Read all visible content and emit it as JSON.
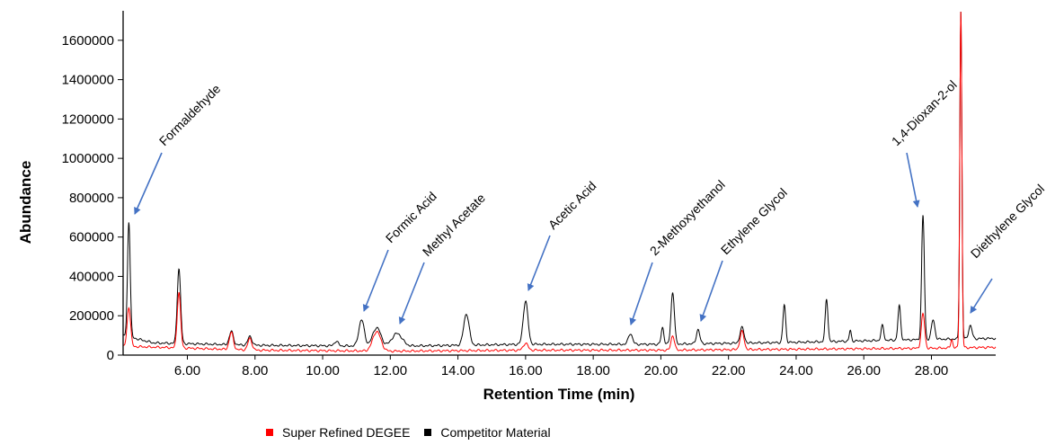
{
  "chart_data": {
    "type": "line",
    "title": "",
    "xlabel": "Retention Time (min)",
    "ylabel": "Abundance",
    "xlim": [
      4.1,
      29.9
    ],
    "ylim": [
      0,
      1750000
    ],
    "x_ticks": [
      6,
      8,
      10,
      12,
      14,
      16,
      18,
      20,
      22,
      24,
      26,
      28
    ],
    "x_tick_labels": [
      "6.00",
      "8.00",
      "10.00",
      "12.00",
      "14.00",
      "16.00",
      "18.00",
      "20.00",
      "22.00",
      "24.00",
      "26.00",
      "28.00"
    ],
    "y_ticks": [
      0,
      200000,
      400000,
      600000,
      800000,
      1000000,
      1200000,
      1400000,
      1600000
    ],
    "y_tick_labels": [
      "0",
      "200000",
      "400000",
      "600000",
      "800000",
      "1000000",
      "1200000",
      "1400000",
      "1600000"
    ],
    "legend_position": "bottom",
    "series": [
      {
        "name": "Competitor Material",
        "color": "#000000",
        "baseline": [
          [
            4.1,
            100000
          ],
          [
            5.0,
            62000
          ],
          [
            8.0,
            50000
          ],
          [
            12.0,
            45000
          ],
          [
            16.0,
            55000
          ],
          [
            20.0,
            55000
          ],
          [
            24.0,
            65000
          ],
          [
            28.0,
            80000
          ],
          [
            29.9,
            85000
          ]
        ],
        "peaks": [
          {
            "x": 4.27,
            "y": 680000,
            "w": 0.04
          },
          {
            "x": 5.75,
            "y": 440000,
            "w": 0.05
          },
          {
            "x": 7.3,
            "y": 120000,
            "w": 0.06
          },
          {
            "x": 7.85,
            "y": 95000,
            "w": 0.06
          },
          {
            "x": 10.4,
            "y": 70000,
            "w": 0.06
          },
          {
            "x": 11.15,
            "y": 180000,
            "w": 0.08
          },
          {
            "x": 11.6,
            "y": 140000,
            "w": 0.12
          },
          {
            "x": 12.2,
            "y": 110000,
            "w": 0.15
          },
          {
            "x": 14.25,
            "y": 210000,
            "w": 0.08
          },
          {
            "x": 16.0,
            "y": 275000,
            "w": 0.07
          },
          {
            "x": 19.1,
            "y": 110000,
            "w": 0.06
          },
          {
            "x": 20.05,
            "y": 140000,
            "w": 0.04
          },
          {
            "x": 20.35,
            "y": 320000,
            "w": 0.05
          },
          {
            "x": 21.1,
            "y": 130000,
            "w": 0.05
          },
          {
            "x": 22.4,
            "y": 140000,
            "w": 0.06
          },
          {
            "x": 23.65,
            "y": 255000,
            "w": 0.04
          },
          {
            "x": 24.9,
            "y": 285000,
            "w": 0.04
          },
          {
            "x": 25.6,
            "y": 125000,
            "w": 0.03
          },
          {
            "x": 26.55,
            "y": 150000,
            "w": 0.04
          },
          {
            "x": 27.05,
            "y": 250000,
            "w": 0.04
          },
          {
            "x": 27.75,
            "y": 710000,
            "w": 0.04
          },
          {
            "x": 28.05,
            "y": 180000,
            "w": 0.05
          },
          {
            "x": 28.87,
            "y": 1750000,
            "w": 0.03
          },
          {
            "x": 29.15,
            "y": 150000,
            "w": 0.05
          }
        ]
      },
      {
        "name": "Super Refined DEGEE",
        "color": "#ff0000",
        "baseline": [
          [
            4.1,
            45000
          ],
          [
            8.0,
            25000
          ],
          [
            12.0,
            20000
          ],
          [
            16.0,
            25000
          ],
          [
            20.0,
            25000
          ],
          [
            24.0,
            30000
          ],
          [
            28.0,
            35000
          ],
          [
            29.9,
            40000
          ]
        ],
        "peaks": [
          {
            "x": 4.27,
            "y": 245000,
            "w": 0.05
          },
          {
            "x": 5.75,
            "y": 320000,
            "w": 0.05
          },
          {
            "x": 7.3,
            "y": 115000,
            "w": 0.06
          },
          {
            "x": 7.85,
            "y": 85000,
            "w": 0.06
          },
          {
            "x": 11.6,
            "y": 120000,
            "w": 0.12
          },
          {
            "x": 16.0,
            "y": 60000,
            "w": 0.07
          },
          {
            "x": 20.35,
            "y": 100000,
            "w": 0.05
          },
          {
            "x": 22.4,
            "y": 120000,
            "w": 0.06
          },
          {
            "x": 27.75,
            "y": 210000,
            "w": 0.05
          },
          {
            "x": 28.6,
            "y": 80000,
            "w": 0.03
          },
          {
            "x": 28.87,
            "y": 1750000,
            "w": 0.03
          }
        ]
      }
    ],
    "annotations": [
      {
        "label": "Formaldehyde",
        "x": 4.27
      },
      {
        "label": "Formic Acid",
        "x": 11.2
      },
      {
        "label": "Methyl Acetate",
        "x": 12.2
      },
      {
        "label": "Acetic Acid",
        "x": 16.0
      },
      {
        "label": "2-Methoxyethanol",
        "x": 19.1
      },
      {
        "label": "Ethylene Glycol",
        "x": 21.1
      },
      {
        "label": "1,4-Dioxan-2-ol",
        "x": 27.75
      },
      {
        "label": "Diethylene Glycol",
        "x": 29.15
      }
    ]
  },
  "legend": {
    "items": [
      {
        "label": "Super Refined DEGEE",
        "color": "#ff0000"
      },
      {
        "label": "Competitor Material",
        "color": "#000000"
      }
    ]
  }
}
